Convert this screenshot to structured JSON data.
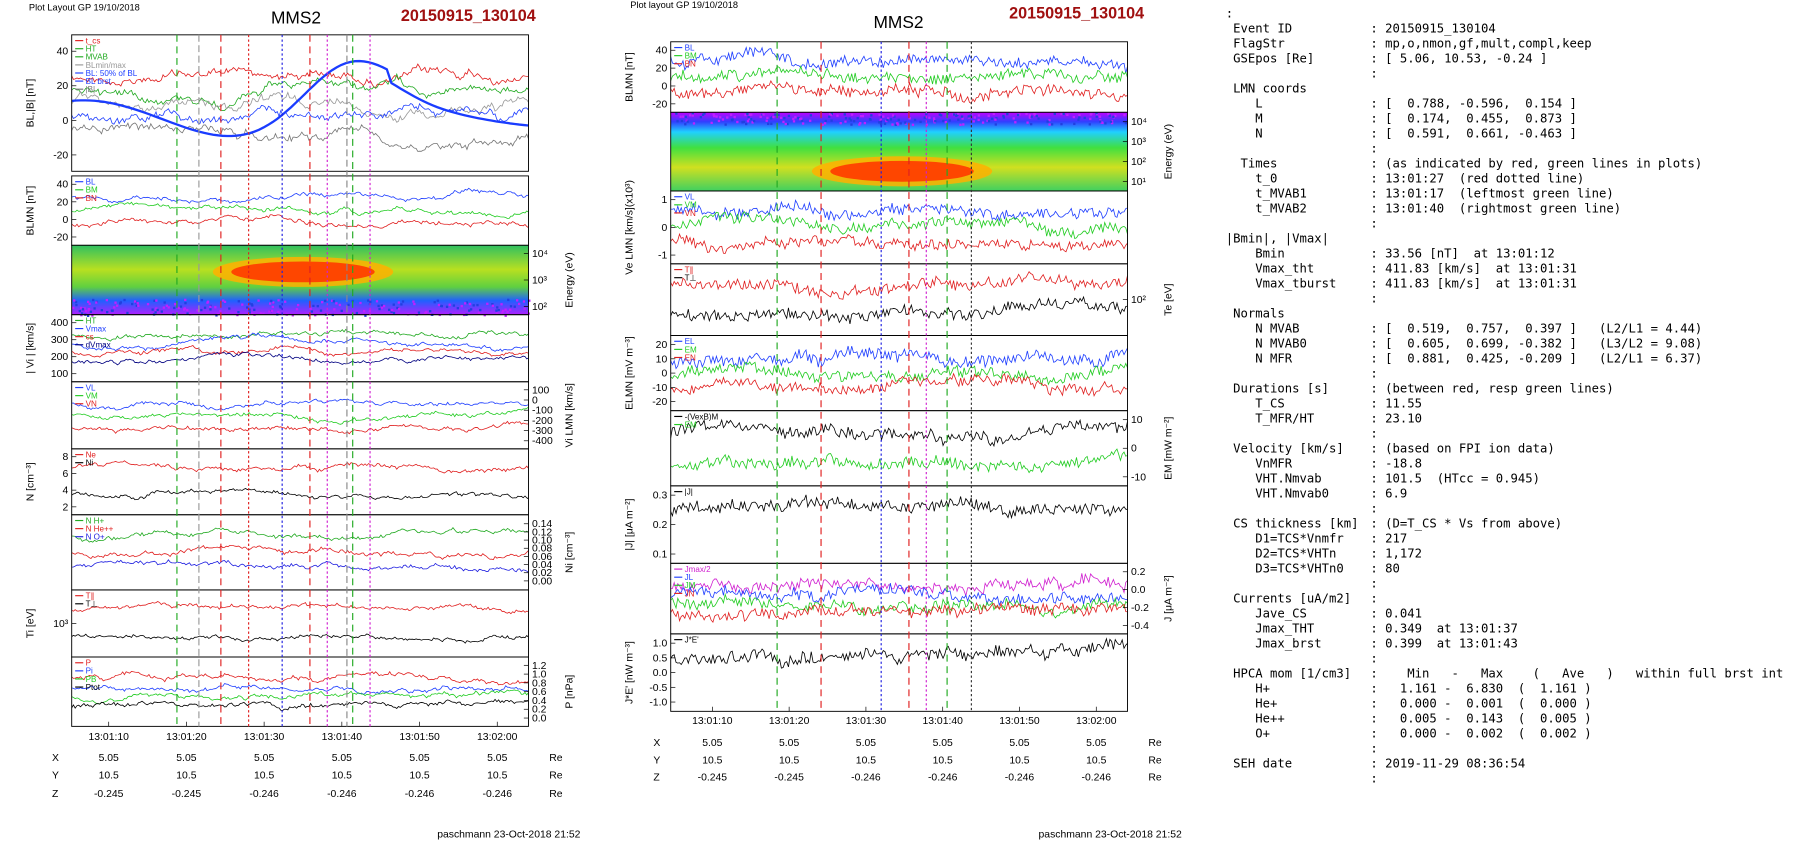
{
  "left": {
    "header": "Plot Layout GP 19/10/2018",
    "title": "MMS2",
    "event": "20150915_130104",
    "panels": [
      {
        "ylabel": "BL,|B| [nT]",
        "side": "left",
        "yticks": [
          "40",
          "20",
          "0",
          "-20"
        ],
        "legend": [
          {
            "text": "t_cs",
            "color": "#e02020"
          },
          {
            "text": "HT",
            "color": "#22aa22"
          },
          {
            "text": "MVAB",
            "color": "#22aa22"
          },
          {
            "text": "BLmin/max",
            "color": "#999999"
          },
          {
            "text": "BL: 50% of BL",
            "color": "#2040ff"
          },
          {
            "text": "BL  brst",
            "color": "#2040ff"
          },
          {
            "text": "|B|",
            "color": "#777777"
          }
        ]
      },
      {
        "ylabel": "BLMN [nT]",
        "side": "left",
        "yticks": [
          "40",
          "20",
          "0",
          "-20"
        ],
        "legend": [
          {
            "text": "BL",
            "color": "#2040ff"
          },
          {
            "text": "BM",
            "color": "#22cc22"
          },
          {
            "text": "BN",
            "color": "#e02020"
          }
        ]
      },
      {
        "ylabel": "Energy (eV)",
        "side": "right",
        "yticks": [
          "10⁴",
          "10³",
          "10²"
        ],
        "spectrogram": true
      },
      {
        "ylabel": "| Vi | [km/s]",
        "side": "left",
        "yticks": [
          "400",
          "300",
          "200",
          "100"
        ],
        "legend": [
          {
            "text": "HT",
            "color": "#22aa22"
          },
          {
            "text": "Vmax",
            "color": "#2040ff"
          },
          {
            "text": "cs",
            "color": "#e02020"
          },
          {
            "text": "dVmax",
            "color": "#000080"
          }
        ]
      },
      {
        "ylabel": "Vi LMN [km/s]",
        "side": "right",
        "yticks": [
          "100",
          "0",
          "-100",
          "-200",
          "-300",
          "-400"
        ],
        "legend": [
          {
            "text": "VL",
            "color": "#2040ff"
          },
          {
            "text": "VM",
            "color": "#22cc22"
          },
          {
            "text": "VN",
            "color": "#e02020"
          }
        ]
      },
      {
        "ylabel": "N [cm⁻³]",
        "side": "left",
        "yticks": [
          "8",
          "6",
          "4",
          "2"
        ],
        "legend": [
          {
            "text": "Ne",
            "color": "#e02020"
          },
          {
            "text": "Ni",
            "color": "#000000"
          }
        ]
      },
      {
        "ylabel": "Ni [cm⁻³]",
        "side": "right",
        "yticks": [
          "0.14",
          "0.12",
          "0.10",
          "0.08",
          "0.06",
          "0.04",
          "0.02",
          "0.00"
        ],
        "legend": [
          {
            "text": "N  H+",
            "color": "#22aa22"
          },
          {
            "text": "N  He++",
            "color": "#e02020"
          },
          {
            "text": "N  O+",
            "color": "#2020e0"
          }
        ]
      },
      {
        "ylabel": "Ti [eV]",
        "side": "left",
        "yticks": [
          "10³"
        ],
        "legend": [
          {
            "text": "T∥",
            "color": "#e02020"
          },
          {
            "text": "T⊥",
            "color": "#000000"
          }
        ]
      },
      {
        "ylabel": "P [nPa]",
        "side": "right",
        "yticks": [
          "1.2",
          "1.0",
          "0.8",
          "0.6",
          "0.4",
          "0.2",
          "0.0"
        ],
        "legend": [
          {
            "text": "P",
            "color": "#e02020"
          },
          {
            "text": "Pi",
            "color": "#2040ff"
          },
          {
            "text": "PB",
            "color": "#22cc22"
          },
          {
            "text": "Ptot",
            "color": "#000000"
          }
        ]
      }
    ],
    "xticks": [
      "13:01:10",
      "13:01:20",
      "13:01:30",
      "13:01:40",
      "13:01:50",
      "13:02:00"
    ],
    "position": [
      {
        "label": "X",
        "values": [
          5.05,
          5.05,
          5.05,
          5.05,
          5.05,
          5.05
        ],
        "unit": "Re"
      },
      {
        "label": "Y",
        "values": [
          10.5,
          10.5,
          10.5,
          10.5,
          10.5,
          10.5
        ],
        "unit": "Re"
      },
      {
        "label": "Z",
        "values": [
          -0.245,
          -0.245,
          -0.246,
          -0.246,
          -0.246,
          -0.246
        ],
        "unit": "Re"
      }
    ],
    "footer": "paschmann 23-Oct-2018 21:52"
  },
  "right": {
    "header": "Plot layout GP 19/10/2018",
    "title": "MMS2",
    "event": "20150915_130104",
    "panels": [
      {
        "ylabel": "BLMN [nT]",
        "side": "left",
        "yticks": [
          "40",
          "20",
          "0",
          "-20"
        ],
        "legend": [
          {
            "text": "BL",
            "color": "#2040ff"
          },
          {
            "text": "BM",
            "color": "#22cc22"
          },
          {
            "text": "BN",
            "color": "#e02020"
          }
        ]
      },
      {
        "ylabel": "Energy (eV)",
        "side": "right",
        "yticks": [
          "10⁴",
          "10³",
          "10²",
          "10¹"
        ],
        "spectrogram": true
      },
      {
        "ylabel": "Ve LMN [km/s](x10³)",
        "side": "left",
        "yticks": [
          "1",
          "0",
          "-1"
        ],
        "legend": [
          {
            "text": "VL",
            "color": "#2040ff"
          },
          {
            "text": "VM",
            "color": "#22cc22"
          },
          {
            "text": "VN",
            "color": "#e02020"
          }
        ]
      },
      {
        "ylabel": "Te [eV]",
        "side": "right",
        "yticks": [
          "10²"
        ],
        "legend": [
          {
            "text": "T∥",
            "color": "#e02020"
          },
          {
            "text": "T⊥",
            "color": "#000000"
          }
        ]
      },
      {
        "ylabel": "ELMN [mV m⁻³]",
        "side": "left",
        "yticks": [
          "20",
          "10",
          "0",
          "-10",
          "-20"
        ],
        "legend": [
          {
            "text": "EL",
            "color": "#2040ff"
          },
          {
            "text": "EM",
            "color": "#22cc22"
          },
          {
            "text": "EN",
            "color": "#e02020"
          }
        ]
      },
      {
        "ylabel": "EM [mW m⁻²]",
        "side": "right",
        "yticks": [
          "10",
          "0",
          "-10"
        ],
        "legend": [
          {
            "text": "-(VexB)M",
            "color": "#000000"
          },
          {
            "text": "EM",
            "color": "#22cc22"
          }
        ]
      },
      {
        "ylabel": "|J| [μA m⁻²]",
        "side": "left",
        "yticks": [
          "0.3",
          "0.2",
          "0.1"
        ],
        "legend": [
          {
            "text": "|J|",
            "color": "#000000"
          }
        ]
      },
      {
        "ylabel": "J [μA m⁻²]",
        "side": "right",
        "yticks": [
          "0.2",
          "0.0",
          "-0.2",
          "-0.4"
        ],
        "legend": [
          {
            "text": "Jmax/2",
            "color": "#d020d0"
          },
          {
            "text": "JL",
            "color": "#2040ff"
          },
          {
            "text": "JM",
            "color": "#22cc22"
          },
          {
            "text": "JN",
            "color": "#e02020"
          }
        ]
      },
      {
        "ylabel": "J*E' [nW m⁻³]",
        "side": "left",
        "yticks": [
          "1.0",
          "0.5",
          "0.0",
          "-0.5",
          "-1.0"
        ],
        "legend": [
          {
            "text": "J*E'",
            "color": "#000000"
          }
        ]
      }
    ],
    "xticks": [
      "13:01:10",
      "13:01:20",
      "13:01:30",
      "13:01:40",
      "13:01:50",
      "13:02:00"
    ],
    "position": [
      {
        "label": "X",
        "values": [
          5.05,
          5.05,
          5.05,
          5.05,
          5.05,
          5.05
        ],
        "unit": "Re"
      },
      {
        "label": "Y",
        "values": [
          10.5,
          10.5,
          10.5,
          10.5,
          10.5,
          10.5
        ],
        "unit": "Re"
      },
      {
        "label": "Z",
        "values": [
          -0.245,
          -0.245,
          -0.246,
          -0.246,
          -0.246,
          -0.246
        ],
        "unit": "Re"
      }
    ],
    "footer": "paschmann 23-Oct-2018 21:52"
  },
  "info": {
    "lines": [
      {
        "label": ":"
      },
      {
        "label": " Event ID",
        "value": ": 20150915_130104"
      },
      {
        "label": " FlagStr",
        "value": ": mp,o,nmon,gf,mult,compl,keep"
      },
      {
        "label": " GSEpos [Re]",
        "value": ": [ 5.06, 10.53, -0.24 ]"
      },
      {
        "value": ":"
      },
      {
        "label": " LMN coords"
      },
      {
        "label": "    L",
        "value": ": [  0.788, -0.596,  0.154 ]"
      },
      {
        "label": "    M",
        "value": ": [  0.174,  0.455,  0.873 ]"
      },
      {
        "label": "    N",
        "value": ": [  0.591,  0.661, -0.463 ]"
      },
      {
        "value": ":"
      },
      {
        "label": "  Times",
        "value": ": (as indicated by red, green lines in plots)"
      },
      {
        "label": "    t_0",
        "value": ": 13:01:27  (red dotted line)"
      },
      {
        "label": "    t_MVAB1",
        "value": ": 13:01:17  (leftmost green line)"
      },
      {
        "label": "    t_MVAB2",
        "value": ": 13:01:40  (rightmost green line)"
      },
      {
        "value": ":"
      },
      {
        "label": "|Bmin|, |Vmax|"
      },
      {
        "label": "    Bmin",
        "value": ": 33.56 [nT]  at 13:01:12"
      },
      {
        "label": "    Vmax_tht",
        "value": ": 411.83 [km/s]  at 13:01:31"
      },
      {
        "label": "    Vmax_tburst",
        "value": ": 411.83 [km/s]  at 13:01:31"
      },
      {
        "value": ":"
      },
      {
        "label": " Normals"
      },
      {
        "label": "    N MVAB",
        "value": ": [  0.519,  0.757,  0.397 ]   (L2/L1 = 4.44)"
      },
      {
        "label": "    N MVAB0",
        "value": ": [  0.605,  0.699, -0.382 ]   (L3/L2 = 9.08)"
      },
      {
        "label": "    N MFR",
        "value": ": [  0.881,  0.425, -0.209 ]   (L2/L1 = 6.37)"
      },
      {
        "value": ":"
      },
      {
        "label": " Durations [s]",
        "value": ": (between red, resp green lines)"
      },
      {
        "label": "    T_CS",
        "value": ": 11.55"
      },
      {
        "label": "    T_MFR/HT",
        "value": ": 23.10"
      },
      {
        "value": ":"
      },
      {
        "label": " Velocity [km/s]",
        "value": ": (based on FPI ion data)"
      },
      {
        "label": "    VnMFR",
        "value": ": -18.8"
      },
      {
        "label": "    VHT.Nmvab",
        "value": ": 101.5  (HTcc = 0.945)"
      },
      {
        "label": "    VHT.Nmvab0",
        "value": ": 6.9"
      },
      {
        "value": ":"
      },
      {
        "label": " CS thickness [km]",
        "value": ": (D=T_CS * Vs from above)"
      },
      {
        "label": "    D1=TCS*Vnmfr",
        "value": ": 217"
      },
      {
        "label": "    D2=TCS*VHTn",
        "value": ": 1,172"
      },
      {
        "label": "    D3=TCS*VHTn0",
        "value": ": 80"
      },
      {
        "value": ":"
      },
      {
        "label": " Currents [uA/m2]",
        "value": ":"
      },
      {
        "label": "    Jave_CS",
        "value": ": 0.041"
      },
      {
        "label": "    Jmax_THT",
        "value": ": 0.349  at 13:01:37"
      },
      {
        "label": "    Jmax_brst",
        "value": ": 0.399  at 13:01:43"
      },
      {
        "value": ":"
      },
      {
        "label": " HPCA mom [1/cm3]",
        "value": ":    Min   -   Max    (   Ave   )   within full brst int"
      },
      {
        "label": "    H+",
        "value": ":   1.161 -  6.830  (  1.161 )"
      },
      {
        "label": "    He+",
        "value": ":   0.000 -  0.001  (  0.000 )"
      },
      {
        "label": "    He++",
        "value": ":   0.005 -  0.143  (  0.005 )"
      },
      {
        "label": "    O+",
        "value": ":   0.000 -  0.002  (  0.002 )"
      },
      {
        "value": ":"
      },
      {
        "label": " SEH date",
        "value": ": 2019-11-29 08:36:54"
      },
      {
        "value": ":"
      }
    ]
  }
}
